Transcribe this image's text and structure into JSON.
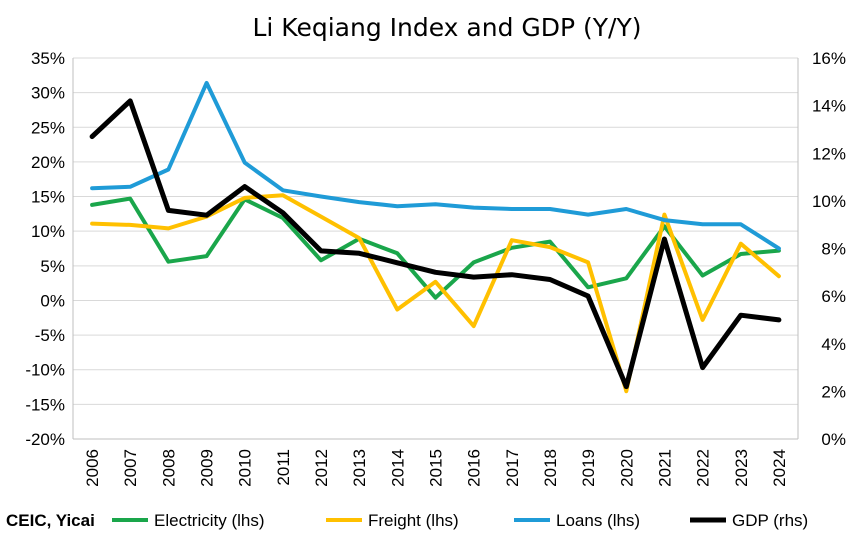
{
  "chart_data": {
    "type": "line",
    "title": "Li Keqiang Index and GDP (Y/Y)",
    "source": "CEIC, Yicai",
    "x": [
      "2006",
      "2007",
      "2008",
      "2009",
      "2010",
      "2011",
      "2012",
      "2013",
      "2014",
      "2015",
      "2016",
      "2017",
      "2018",
      "2019",
      "2020",
      "2021",
      "2022",
      "2023",
      "2024"
    ],
    "left_axis": {
      "min": -0.2,
      "max": 0.35,
      "step": 0.05,
      "tick_labels": [
        "-20%",
        "-15%",
        "-10%",
        "-5%",
        "0%",
        "5%",
        "10%",
        "15%",
        "20%",
        "25%",
        "30%",
        "35%"
      ]
    },
    "right_axis": {
      "min": 0,
      "max": 0.16,
      "step": 0.02,
      "tick_labels": [
        "0%",
        "2%",
        "4%",
        "6%",
        "8%",
        "10%",
        "12%",
        "14%",
        "16%"
      ]
    },
    "grid": true,
    "legend_position": "bottom",
    "series": [
      {
        "name": "Electricity (lhs)",
        "axis": "left",
        "color": "#1aa64b",
        "values": [
          0.138,
          0.147,
          0.056,
          0.064,
          0.146,
          0.119,
          0.058,
          0.089,
          0.068,
          0.004,
          0.055,
          0.076,
          0.085,
          0.019,
          0.032,
          0.107,
          0.036,
          0.067,
          0.072
        ]
      },
      {
        "name": "Freight (lhs)",
        "axis": "left",
        "color": "#ffc000",
        "values": [
          0.111,
          0.109,
          0.104,
          0.121,
          0.148,
          0.152,
          0.121,
          0.09,
          -0.013,
          0.027,
          -0.037,
          0.087,
          0.077,
          0.055,
          -0.131,
          0.124,
          -0.028,
          0.082,
          0.035
        ]
      },
      {
        "name": "Loans (lhs)",
        "axis": "left",
        "color": "#1f9bd7",
        "values": [
          0.162,
          0.164,
          0.189,
          0.314,
          0.199,
          0.159,
          0.15,
          0.142,
          0.136,
          0.139,
          0.134,
          0.132,
          0.132,
          0.124,
          0.132,
          0.116,
          0.11,
          0.11,
          0.075
        ]
      },
      {
        "name": "GDP (rhs)",
        "axis": "right",
        "color": "#000000",
        "values": [
          0.127,
          0.142,
          0.096,
          0.094,
          0.106,
          0.095,
          0.079,
          0.078,
          0.074,
          0.07,
          0.068,
          0.069,
          0.067,
          0.06,
          0.022,
          0.084,
          0.03,
          0.052,
          0.05
        ]
      }
    ]
  }
}
